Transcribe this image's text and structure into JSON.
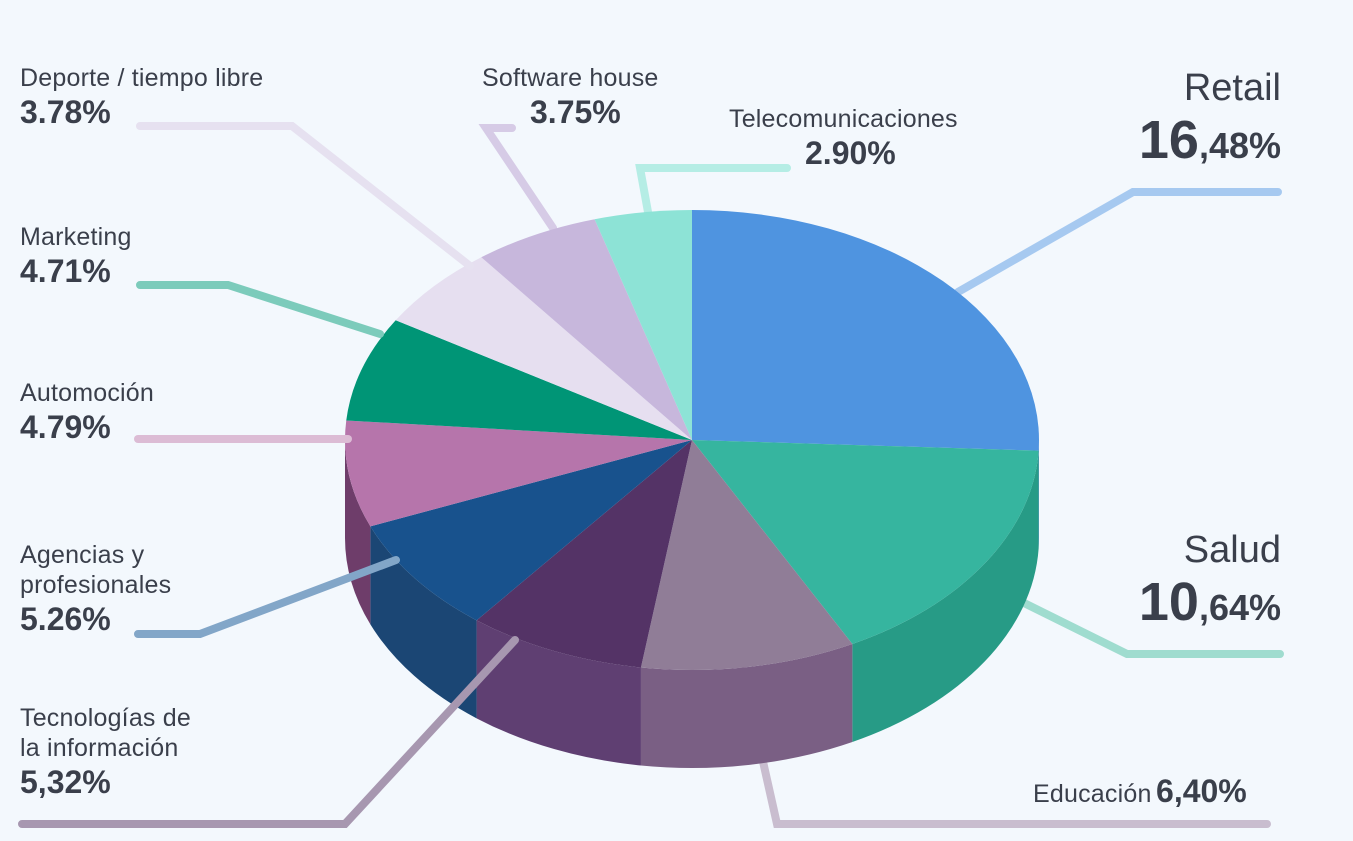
{
  "chart_data": {
    "type": "pie",
    "slices": [
      {
        "label": "Retail",
        "value_text": "16,48%",
        "value": 16.48,
        "color": "#4f94e0",
        "side": "#3d7bc4"
      },
      {
        "label": "Salud",
        "value_text": "10,64%",
        "value": 10.64,
        "color": "#36b59f",
        "side": "#279b86"
      },
      {
        "label": "Educación",
        "value_text": "6,40%",
        "value": 6.4,
        "color": "#907d97",
        "side": "#7a5f84"
      },
      {
        "label": "Tecnologías de la información",
        "value_text": "5,32%",
        "value": 5.32,
        "color": "#543366",
        "side": "#5f3f72"
      },
      {
        "label": "Agencias y profesionales",
        "value_text": "5.26%",
        "value": 5.26,
        "color": "#18528d",
        "side": "#1b4674"
      },
      {
        "label": "Automoción",
        "value_text": "4.79%",
        "value": 4.79,
        "color": "#b675ab",
        "side": "#6e3d6a"
      },
      {
        "label": "Marketing",
        "value_text": "4.71%",
        "value": 4.71,
        "color": "#009576",
        "side": "#007a61"
      },
      {
        "label": "Deporte / tiempo libre",
        "value_text": "3.78%",
        "value": 3.78,
        "color": "#e6dff0",
        "side": "#cfc6dc"
      },
      {
        "label": "Software house",
        "value_text": "3.75%",
        "value": 3.75,
        "color": "#c7b7dc",
        "side": "#ab9ac4"
      },
      {
        "label": "Telecomunicaciones",
        "value_text": "2.90%",
        "value": 2.9,
        "color": "#8de3d6",
        "side": "#6fcabd"
      }
    ]
  },
  "labels": {
    "retail": {
      "name": "Retail",
      "int": "16",
      "dec": ",48%"
    },
    "salud": {
      "name": "Salud",
      "int": "10",
      "dec": ",64%"
    },
    "educacion": {
      "name": "Educación",
      "value": "6,40%"
    },
    "tecnologias": {
      "line1": "Tecnologías de",
      "line2": "la información",
      "value": "5,32%"
    },
    "agencias": {
      "line1": "Agencias y",
      "line2": "profesionales",
      "value": "5.26%"
    },
    "automocion": {
      "name": "Automoción",
      "value": "4.79%"
    },
    "marketing": {
      "name": "Marketing",
      "value": "4.71%"
    },
    "deporte": {
      "name": "Deporte / tiempo libre",
      "value": "3.78%"
    },
    "software": {
      "name": "Software house",
      "value": "3.75%"
    },
    "telecom": {
      "name": "Telecomunicaciones",
      "value": "2.90%"
    }
  }
}
